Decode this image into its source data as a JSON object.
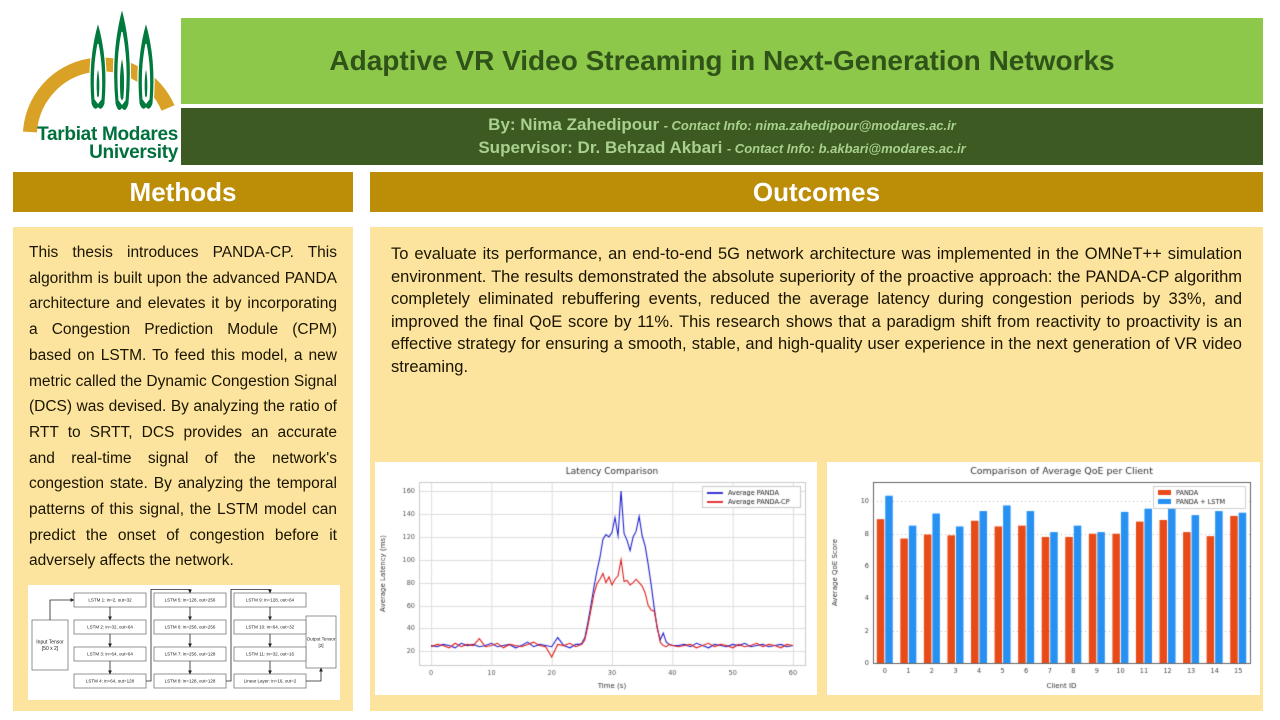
{
  "colors": {
    "light_green_band": "#8dc84b",
    "dark_green_band": "#3c5a22",
    "title_text": "#2f5318",
    "pale_green_text": "#a9d18e",
    "gold_header": "#bc8e08",
    "cream_panel": "#fce49e",
    "logo_green": "#00703c",
    "logo_gold": "#d9a226"
  },
  "header": {
    "logo": {
      "line1": "Tarbiat Modares",
      "line2": "University"
    },
    "title": "Adaptive VR Video Streaming in Next-Generation Networks",
    "byline": {
      "name": "By: Nima Zahedipour",
      "contact": "- Contact Info: nima.zahedipour@modares.ac.ir"
    },
    "supervisor": {
      "name": "Supervisor: Dr. Behzad Akbari",
      "contact": "- Contact Info: b.akbari@modares.ac.ir"
    }
  },
  "methods": {
    "heading": "Methods",
    "body": "This thesis introduces PANDA-CP. This algorithm is built upon the advanced PANDA architecture and elevates it by incorporating a Congestion Prediction Module (CPM) based on LSTM. To feed this model, a new metric called the Dynamic Congestion Signal (DCS) was devised. By analyzing the ratio of RTT to SRTT, DCS provides an accurate and real-time signal of the network's congestion state. By analyzing the temporal patterns of this signal, the LSTM model can predict the onset of congestion before it adversely affects the network.",
    "diagram": {
      "input": [
        "Input Tensor",
        "[50 x 2]"
      ],
      "output": [
        "Output Tensor",
        "[2]"
      ],
      "columns": [
        [
          "LSTM 1: in=2, out=32",
          "LSTM 2: in=32, out=64",
          "LSTM 3: in=64, out=64",
          "LSTM 4: in=64, out=128"
        ],
        [
          "LSTM 5: in=128, out=256",
          "LSTM 6: in=256, out=256",
          "LSTM 7: in=256, out=128",
          "LSTM 8: in=128, out=128"
        ],
        [
          "LSTM 9: in=128, out=64",
          "LSTM 10: in=64, out=32",
          "LSTM 11: in=32, out=16",
          "Linear Layer: in=16, out=2"
        ]
      ]
    }
  },
  "outcomes": {
    "heading": "Outcomes",
    "body": "To evaluate its performance, an end-to-end 5G network architecture was implemented in the OMNeT++ simulation environment. The results demonstrated the absolute superiority of the proactive approach: the PANDA-CP algorithm completely eliminated rebuffering events, reduced the average latency during congestion periods by 33%, and improved the final QoE score by 11%. This research shows that a paradigm shift from reactivity to proactivity is an effective strategy for ensuring a smooth, stable, and high-quality user experience in the next generation of VR video streaming."
  },
  "chart_data": [
    {
      "type": "line",
      "title": "Latency Comparison",
      "xlabel": "Time (s)",
      "ylabel": "Average Latency (ms)",
      "xlim": [
        -2,
        62
      ],
      "ylim": [
        8,
        168
      ],
      "xticks": [
        0,
        10,
        20,
        30,
        40,
        50,
        60
      ],
      "yticks": [
        20,
        40,
        60,
        80,
        100,
        120,
        140,
        160
      ],
      "grid": true,
      "legend_position": "upper right",
      "x": [
        0,
        1,
        2,
        3,
        4,
        5,
        6,
        7,
        8,
        9,
        10,
        11,
        12,
        13,
        14,
        15,
        16,
        17,
        18,
        19,
        20,
        21,
        22,
        23,
        24,
        24.5,
        25,
        25.5,
        26,
        26.5,
        27,
        27.5,
        28,
        28.5,
        29,
        29.5,
        30,
        30.5,
        31,
        31.5,
        32,
        32.5,
        33,
        33.5,
        34,
        34.5,
        35,
        35.5,
        36,
        36.5,
        37,
        37.5,
        38,
        38.5,
        39,
        39.5,
        40,
        41,
        42,
        43,
        44,
        45,
        46,
        47,
        48,
        49,
        50,
        51,
        52,
        53,
        54,
        55,
        56,
        57,
        58,
        59,
        60
      ],
      "series": [
        {
          "name": "Average PANDA",
          "color": "#2222cf",
          "values": [
            25,
            24,
            26,
            25,
            23,
            27,
            25,
            26,
            24,
            25,
            27,
            24,
            25,
            26,
            23,
            25,
            28,
            24,
            26,
            25,
            24,
            32,
            25,
            23,
            26,
            26,
            27,
            32,
            45,
            60,
            76,
            90,
            102,
            118,
            122,
            120,
            124,
            137,
            121,
            160,
            123,
            117,
            108,
            120,
            125,
            138,
            121,
            112,
            96,
            78,
            58,
            40,
            30,
            36,
            28,
            26,
            25,
            25,
            26,
            24,
            27,
            25,
            23,
            26,
            25,
            24,
            26,
            25,
            27,
            24,
            25,
            26,
            24,
            25,
            26,
            24,
            25
          ]
        },
        {
          "name": "Average PANDA-CP",
          "color": "#e02020",
          "values": [
            24,
            26,
            25,
            23,
            27,
            24,
            26,
            25,
            31,
            24,
            25,
            27,
            23,
            26,
            25,
            24,
            26,
            28,
            25,
            24,
            15,
            26,
            25,
            27,
            24,
            25,
            26,
            30,
            42,
            56,
            70,
            79,
            83,
            88,
            80,
            85,
            78,
            83,
            86,
            100,
            81,
            82,
            78,
            80,
            83,
            80,
            77,
            71,
            60,
            56,
            55,
            41,
            28,
            25,
            24,
            26,
            25,
            24,
            25,
            26,
            23,
            25,
            27,
            24,
            26,
            25,
            23,
            26,
            24,
            25,
            27,
            24,
            26,
            25,
            23,
            26,
            25
          ]
        }
      ]
    },
    {
      "type": "bar",
      "title": "Comparison of Average QoE per Client",
      "xlabel": "Client ID",
      "ylabel": "Average QoE Score",
      "ylim": [
        0,
        11.2
      ],
      "yticks": [
        0,
        2,
        4,
        6,
        8,
        10
      ],
      "grid": true,
      "legend_position": "upper right",
      "categories": [
        "0",
        "1",
        "2",
        "3",
        "4",
        "5",
        "6",
        "7",
        "8",
        "9",
        "10",
        "11",
        "12",
        "13",
        "14",
        "15"
      ],
      "series": [
        {
          "name": "PANDA",
          "color": "#e84a18",
          "values": [
            8.9,
            7.7,
            7.95,
            7.9,
            8.8,
            8.45,
            8.5,
            7.8,
            7.8,
            8.0,
            8.0,
            8.75,
            8.85,
            8.1,
            7.85,
            9.1
          ]
        },
        {
          "name": "PANDA + LSTM",
          "color": "#2691f2",
          "values": [
            10.35,
            8.5,
            9.25,
            8.45,
            9.4,
            9.75,
            9.4,
            8.1,
            8.5,
            8.1,
            9.35,
            9.55,
            10.5,
            9.15,
            9.4,
            9.3
          ]
        }
      ]
    }
  ]
}
